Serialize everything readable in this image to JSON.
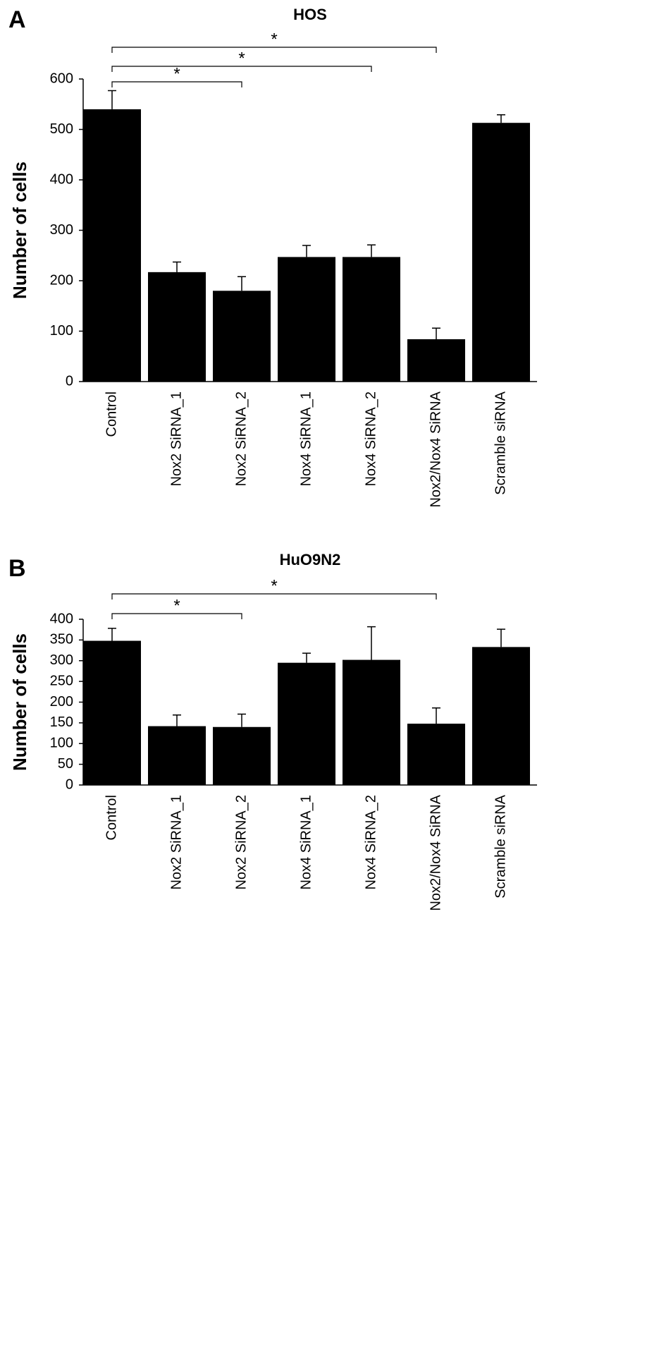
{
  "chart_data": [
    {
      "type": "bar",
      "panel_label": "A",
      "title": "HOS",
      "y_label": "Number of cells",
      "categories": [
        "Control",
        "Nox2 SiRNA_1",
        "Nox2 SiRNA_2",
        "Nox4 SiRNA_1",
        "Nox4 SiRNA_2",
        "Nox2/Nox4 SiRNA",
        "Scramble siRNA"
      ],
      "values": [
        540,
        217,
        180,
        247,
        247,
        84,
        513
      ],
      "errors": [
        37,
        20,
        28,
        23,
        24,
        22,
        16
      ],
      "color": "#000000",
      "ylim": [
        0,
        600
      ],
      "yticks": [
        0,
        100,
        200,
        300,
        400,
        500,
        600
      ],
      "significance": [
        {
          "pair": [
            0,
            2
          ],
          "label": "*"
        },
        {
          "pair": [
            0,
            4
          ],
          "label": "*"
        },
        {
          "pair": [
            0,
            5
          ],
          "label": "*"
        }
      ]
    },
    {
      "type": "bar",
      "panel_label": "B",
      "title": "HuO9N2",
      "y_label": "Number of cells",
      "categories": [
        "Control",
        "Nox2 SiRNA_1",
        "Nox2 SiRNA_2",
        "Nox4 SiRNA_1",
        "Nox4 SiRNA_2",
        "Nox2/Nox4 SiRNA",
        "Scramble siRNA"
      ],
      "values": [
        348,
        142,
        140,
        295,
        302,
        148,
        333
      ],
      "errors": [
        30,
        27,
        31,
        23,
        80,
        38,
        43
      ],
      "color": "#000000",
      "ylim": [
        0,
        400
      ],
      "yticks": [
        0,
        50,
        100,
        150,
        200,
        250,
        300,
        350,
        400
      ],
      "significance": [
        {
          "pair": [
            0,
            2
          ],
          "label": "*"
        },
        {
          "pair": [
            0,
            5
          ],
          "label": "*"
        }
      ]
    }
  ]
}
